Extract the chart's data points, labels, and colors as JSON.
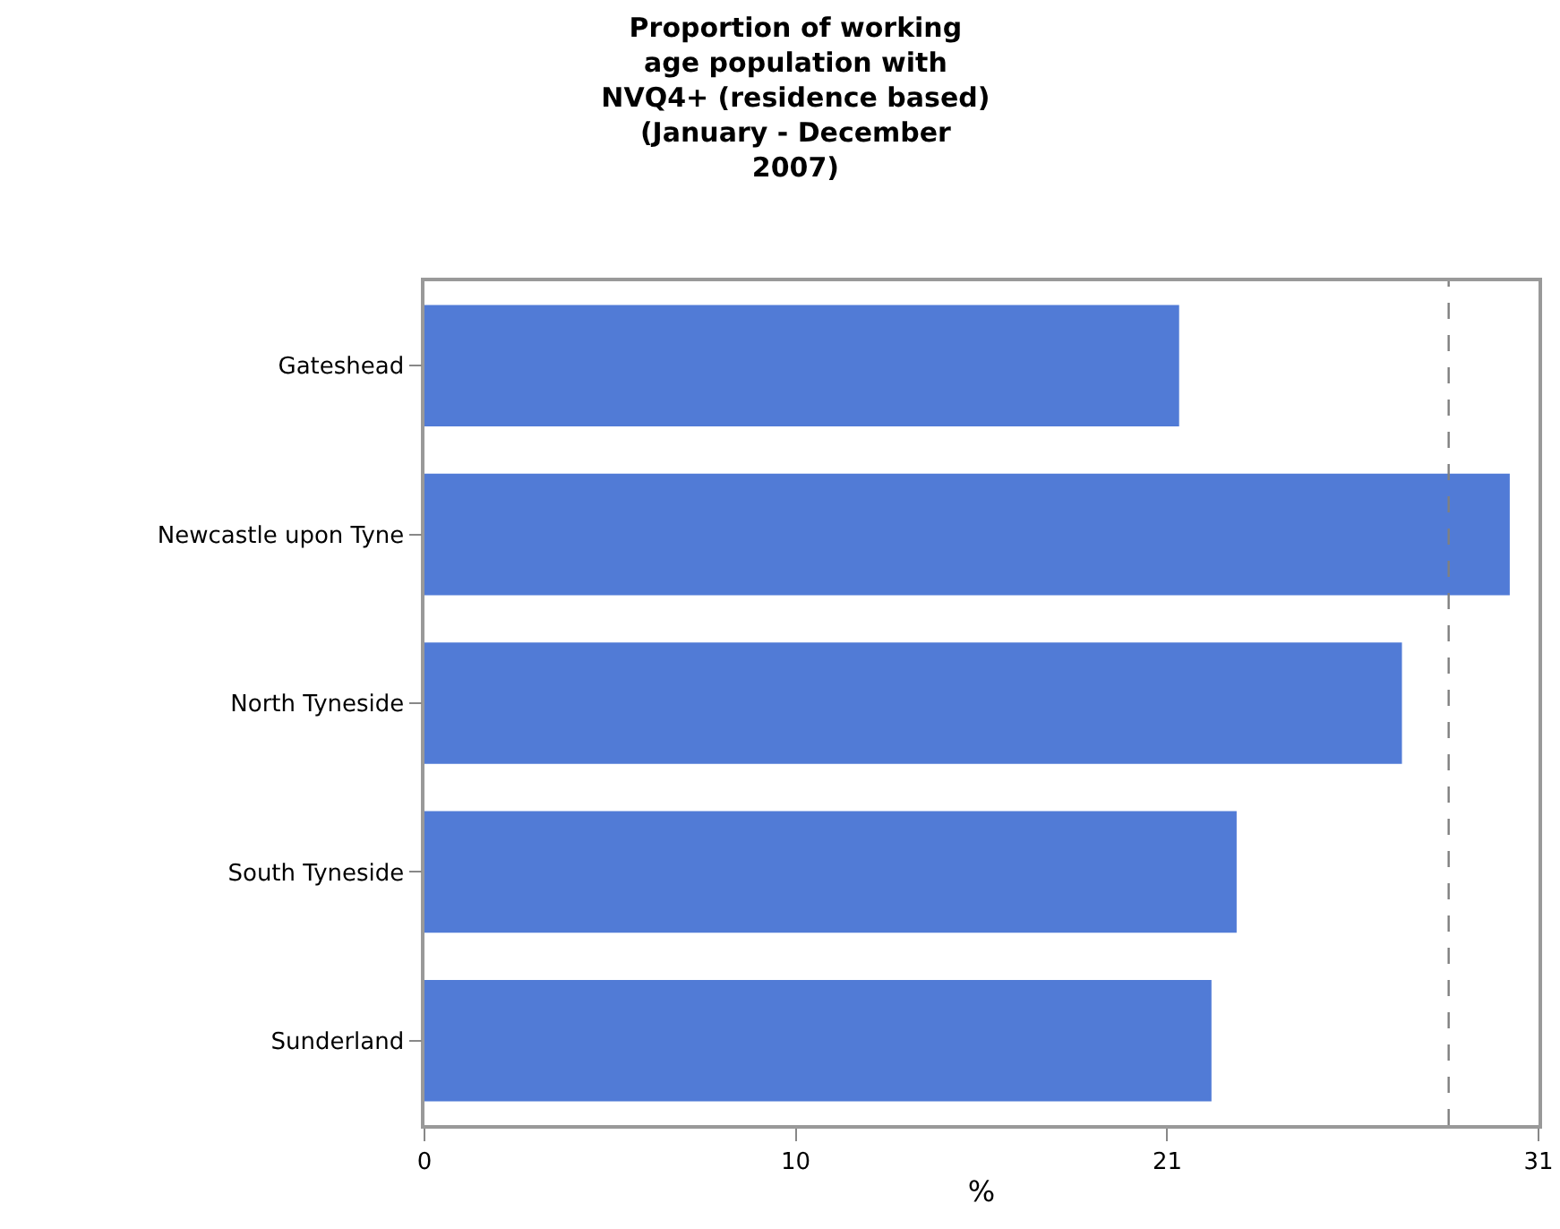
{
  "chart_data": {
    "type": "bar",
    "orientation": "horizontal",
    "title": "Proportion of working age population with NVQ4+ (residence based) (January - December 2007)",
    "xlabel": "%",
    "categories": [
      "Gateshead",
      "Newcastle upon Tyne",
      "North Tyneside",
      "South Tyneside",
      "Sunderland"
    ],
    "values": [
      21.0,
      30.2,
      27.2,
      22.6,
      21.9
    ],
    "color": "#517bd6",
    "xlim": [
      0,
      31
    ],
    "xticks": [
      0,
      {
        "value": 10.33,
        "label": "10"
      },
      {
        "value": 20.67,
        "label": "21"
      },
      31
    ],
    "ref_lines": [
      {
        "axis": "x",
        "value": 28.5,
        "color": "#808080",
        "line_style": "dashed"
      }
    ]
  }
}
